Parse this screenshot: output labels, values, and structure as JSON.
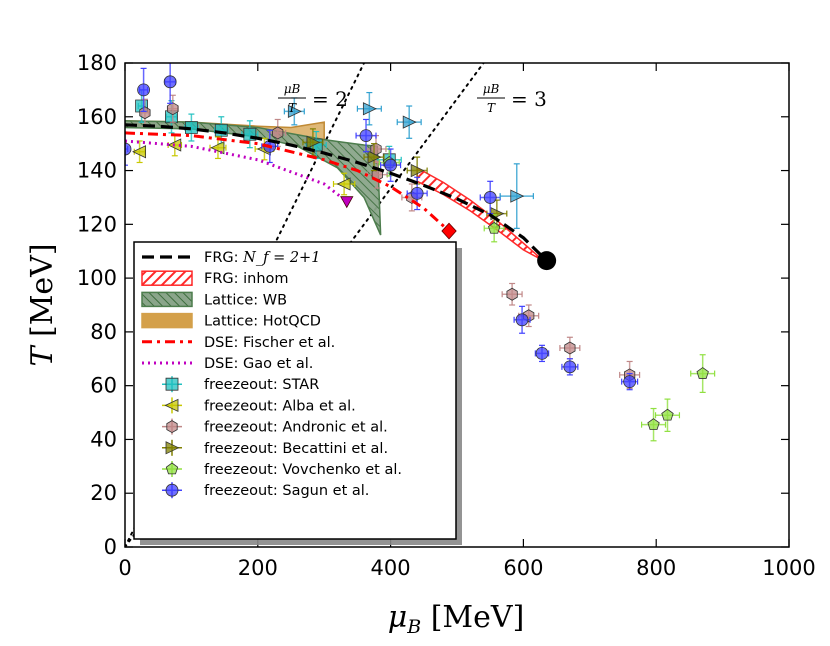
{
  "chart_data": {
    "type": "scatter",
    "title": "",
    "xlabel": "μ_B [MeV]",
    "ylabel": "T [MeV]",
    "xlim": [
      0,
      1000
    ],
    "ylim": [
      0,
      180
    ],
    "xticks": [
      0,
      200,
      400,
      600,
      800,
      1000
    ],
    "yticks": [
      0,
      20,
      40,
      60,
      80,
      100,
      120,
      140,
      160,
      180
    ],
    "grid": false,
    "legend_position": "lower-left",
    "annotations": [
      {
        "id": "ratio2",
        "label": "μ_B/T = 2",
        "ratio": 2
      },
      {
        "id": "ratio3",
        "label": "μ_B/T = 3",
        "ratio": 3
      }
    ],
    "lines": [
      {
        "name": "FRG: N_f = 2+1",
        "legend": "FRG: ",
        "legend_math": "N_f = 2+1",
        "style": "dashed",
        "color": "#000000",
        "x": [
          0,
          50,
          100,
          150,
          200,
          250,
          300,
          350,
          400,
          450,
          500,
          550,
          600,
          635
        ],
        "y": [
          157,
          156.5,
          155.5,
          154,
          152,
          149.5,
          146.5,
          143,
          139,
          134.5,
          129.5,
          123.5,
          115,
          106.5
        ],
        "endpoint": {
          "x": 635,
          "y": 106.5
        }
      },
      {
        "name": "FRG: inhom",
        "legend": "FRG: inhom",
        "style": "hatched-band",
        "color": "#ff2a2a",
        "upper": {
          "x": [
            440,
            480,
            520,
            560,
            600,
            630
          ],
          "y": [
            141,
            135.5,
            129,
            121.5,
            113,
            106.5
          ]
        },
        "lower": {
          "x": [
            440,
            480,
            520,
            560,
            600,
            630
          ],
          "y": [
            136,
            131,
            125,
            118,
            110.5,
            106.5
          ]
        }
      },
      {
        "name": "Lattice: WB",
        "legend": "Lattice: WB",
        "style": "hatched-band",
        "color": "#4d7d4d",
        "upper": {
          "x": [
            0,
            100,
            200,
            300,
            330,
            360,
            380
          ],
          "y": [
            158.5,
            158,
            156,
            151.5,
            150.5,
            149.5,
            149
          ]
        },
        "lower": {
          "x": [
            0,
            100,
            200,
            260,
            320,
            360,
            385
          ],
          "y": [
            156,
            155.5,
            152.5,
            149,
            141,
            130,
            116
          ]
        }
      },
      {
        "name": "Lattice: HotQCD",
        "legend": "Lattice: HotQCD",
        "style": "band",
        "color": "#d4a04a",
        "upper": {
          "x": [
            0,
            100,
            200,
            250,
            300
          ],
          "y": [
            158.5,
            158,
            156.5,
            156,
            158
          ]
        },
        "lower": {
          "x": [
            0,
            100,
            200,
            250,
            300
          ],
          "y": [
            156.5,
            156,
            154.5,
            150,
            145
          ]
        }
      },
      {
        "name": "DSE: Fischer et al.",
        "legend": "DSE: Fischer et al.",
        "style": "dashdot",
        "color": "#ff0000",
        "x": [
          0,
          100,
          200,
          300,
          350,
          400,
          450,
          488
        ],
        "y": [
          154,
          153,
          150,
          144,
          140,
          134,
          126,
          117.5
        ],
        "endpoint": {
          "x": 488,
          "y": 117.5,
          "marker": "diamond"
        }
      },
      {
        "name": "DSE: Gao et al.",
        "legend": "DSE: Gao et al.",
        "style": "dotted",
        "color": "#c000c0",
        "x": [
          0,
          100,
          200,
          300,
          334
        ],
        "y": [
          151,
          149,
          144,
          135,
          128.5
        ],
        "endpoint": {
          "x": 334,
          "y": 128.5,
          "marker": "triangle-down"
        }
      }
    ],
    "series": [
      {
        "name": "freezeout: STAR",
        "legend": "freezeout: STAR",
        "marker": "square",
        "color": "#20c0c0",
        "points": [
          {
            "x": 25,
            "y": 164,
            "xerr": 5,
            "yerr": 6
          },
          {
            "x": 70,
            "y": 160,
            "xerr": 8,
            "yerr": 6
          },
          {
            "x": 100,
            "y": 156,
            "xerr": 10,
            "yerr": 5
          },
          {
            "x": 145,
            "y": 155,
            "xerr": 10,
            "yerr": 5
          },
          {
            "x": 188,
            "y": 153.5,
            "xerr": 12,
            "yerr": 5
          },
          {
            "x": 288,
            "y": 149.5,
            "xerr": 15,
            "yerr": 5
          },
          {
            "x": 398,
            "y": 144,
            "xerr": 18,
            "yerr": 5
          }
        ]
      },
      {
        "name": "freezeout: Alba et al.",
        "legend": "freezeout: Alba et al.",
        "marker": "triangle-left",
        "color": "#c8c800",
        "points": [
          {
            "x": 22,
            "y": 147,
            "xerr": 8,
            "yerr": 4
          },
          {
            "x": 75,
            "y": 149.5,
            "xerr": 10,
            "yerr": 4
          },
          {
            "x": 140,
            "y": 148.5,
            "xerr": 12,
            "yerr": 4
          },
          {
            "x": 210,
            "y": 148,
            "xerr": 14,
            "yerr": 4
          },
          {
            "x": 330,
            "y": 135,
            "xerr": 16,
            "yerr": 4
          }
        ]
      },
      {
        "name": "freezeout: Andronic et al.",
        "legend": "freezeout: Andronic et al.",
        "marker": "hexagon",
        "color": "#c08888",
        "points": [
          {
            "x": 30,
            "y": 161.5,
            "xerr": 6,
            "yerr": 5
          },
          {
            "x": 72,
            "y": 163,
            "xerr": 8,
            "yerr": 5
          },
          {
            "x": 230,
            "y": 154,
            "xerr": 12,
            "yerr": 5
          },
          {
            "x": 378,
            "y": 148,
            "xerr": 15,
            "yerr": 5
          },
          {
            "x": 380,
            "y": 138.5,
            "xerr": 15,
            "yerr": 5
          },
          {
            "x": 432,
            "y": 130,
            "xerr": 15,
            "yerr": 5
          },
          {
            "x": 583,
            "y": 94,
            "xerr": 15,
            "yerr": 4
          },
          {
            "x": 608,
            "y": 86,
            "xerr": 15,
            "yerr": 4
          },
          {
            "x": 670,
            "y": 74,
            "xerr": 15,
            "yerr": 4
          },
          {
            "x": 760,
            "y": 64,
            "xerr": 15,
            "yerr": 5
          }
        ]
      },
      {
        "name": "freezeout: Becattini et al.",
        "legend": "freezeout: Becattini et al.",
        "marker": "triangle-right",
        "color": "#808000",
        "points": [
          {
            "x": 283,
            "y": 150.5,
            "xerr": 15,
            "yerr": 5
          },
          {
            "x": 375,
            "y": 145,
            "xerr": 15,
            "yerr": 5
          },
          {
            "x": 440,
            "y": 140,
            "xerr": 15,
            "yerr": 5
          },
          {
            "x": 560,
            "y": 124,
            "xerr": 15,
            "yerr": 5
          }
        ]
      },
      {
        "name": "freezeout: Vovchenko et al.",
        "legend": "freezeout: Vovchenko et al.",
        "marker": "pentagon",
        "color": "#90e040",
        "points": [
          {
            "x": 398,
            "y": 143,
            "xerr": 15,
            "yerr": 5
          },
          {
            "x": 556,
            "y": 118.5,
            "xerr": 15,
            "yerr": 5
          },
          {
            "x": 796,
            "y": 45.5,
            "xerr": 18,
            "yerr": 6
          },
          {
            "x": 817,
            "y": 49,
            "xerr": 18,
            "yerr": 6
          },
          {
            "x": 870,
            "y": 64.5,
            "xerr": 18,
            "yerr": 7
          }
        ]
      },
      {
        "name": "freezeout: Sagun et al.",
        "legend": "freezeout: Sagun et al.",
        "marker": "circle",
        "color": "#4040ff",
        "points": [
          {
            "x": 0,
            "y": 148,
            "xerr": 4,
            "yerr": 6
          },
          {
            "x": 28,
            "y": 170,
            "xerr": 6,
            "yerr": 8
          },
          {
            "x": 68,
            "y": 173,
            "xerr": 8,
            "yerr": 8
          },
          {
            "x": 218,
            "y": 149,
            "xerr": 12,
            "yerr": 6
          },
          {
            "x": 363,
            "y": 153,
            "xerr": 15,
            "yerr": 6
          },
          {
            "x": 400,
            "y": 142,
            "xerr": 15,
            "yerr": 6
          },
          {
            "x": 440,
            "y": 131.5,
            "xerr": 15,
            "yerr": 6
          },
          {
            "x": 550,
            "y": 130,
            "xerr": 15,
            "yerr": 6
          },
          {
            "x": 598,
            "y": 84.5,
            "xerr": 12,
            "yerr": 5
          },
          {
            "x": 628,
            "y": 72,
            "xerr": 10,
            "yerr": 3
          },
          {
            "x": 670,
            "y": 67,
            "xerr": 12,
            "yerr": 3
          },
          {
            "x": 760,
            "y": 61.5,
            "xerr": 12,
            "yerr": 3
          }
        ]
      },
      {
        "name": "freezeout: extra (triangle-right, cyan)",
        "marker": "triangle-right",
        "color": "#30a0d0",
        "legend": null,
        "points": [
          {
            "x": 255,
            "y": 162,
            "xerr": 15,
            "yerr": 5
          },
          {
            "x": 368,
            "y": 163,
            "xerr": 18,
            "yerr": 6
          },
          {
            "x": 428,
            "y": 158,
            "xerr": 18,
            "yerr": 6
          },
          {
            "x": 590,
            "y": 130.5,
            "xerr": 25,
            "yerr": 12
          }
        ]
      }
    ]
  }
}
